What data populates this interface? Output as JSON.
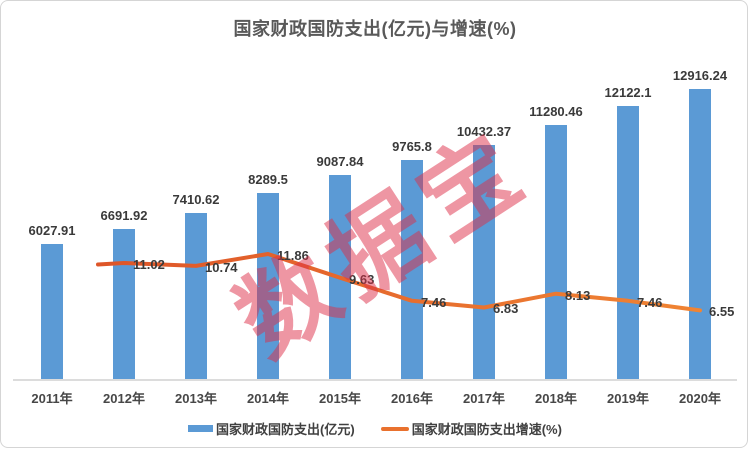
{
  "title": "国家财政国防支出(亿元)与增速(%)",
  "watermark": {
    "text": "数据宝"
  },
  "legend": {
    "bar_label": "国家财政国防支出(亿元)",
    "line_label": "国家财政国防支出增速(%)"
  },
  "colors": {
    "bar": "#5b9ad5",
    "line_gradient_start": "#dd5328",
    "line_gradient_end": "#f08433",
    "title_text": "#595959",
    "value_label_text": "#3a3a3a",
    "axis_line": "#dcdcdc",
    "watermark": "rgba(221,45,71,0.5)"
  },
  "chart_data": {
    "type": "bar",
    "title": "国家财政国防支出(亿元)与增速(%)",
    "categories": [
      "2011年",
      "2012年",
      "2013年",
      "2014年",
      "2015年",
      "2016年",
      "2017年",
      "2018年",
      "2019年",
      "2020年"
    ],
    "series": [
      {
        "name": "国家财政国防支出(亿元)",
        "type": "bar",
        "values": [
          6027.91,
          6691.92,
          7410.62,
          8289.5,
          9087.84,
          9765.8,
          10432.37,
          11280.46,
          12122.1,
          12916.24
        ]
      },
      {
        "name": "国家财政国防支出增速(%)",
        "type": "line",
        "values": [
          null,
          11.02,
          10.74,
          11.86,
          9.63,
          7.46,
          6.83,
          8.13,
          7.46,
          6.55
        ]
      }
    ],
    "xlabel": "",
    "ylabel": "",
    "bar_axis_range": [
      0,
      14000
    ],
    "line_axis_range": [
      0,
      28.6
    ],
    "grid": false,
    "legend_position": "bottom",
    "data_labels": true
  }
}
